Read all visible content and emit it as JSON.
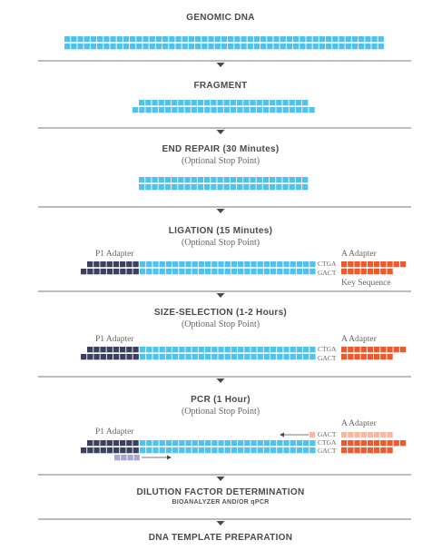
{
  "colors": {
    "dna": "#4fc3ef",
    "p1_adapter": "#3b4060",
    "a_adapter": "#ee5a2b",
    "a_adapter_light": "#f5b9a4",
    "primer": "#a7a7d4",
    "divider": "#4a4a4a",
    "arrow": "#4a4a4a",
    "text": "#4a4a4a"
  },
  "steps": [
    {
      "title": "GENOMIC DNA",
      "subtitle": ""
    },
    {
      "title": "FRAGMENT",
      "subtitle": ""
    },
    {
      "title": "END REPAIR (30 Minutes)",
      "subtitle": "(Optional Stop Point)"
    },
    {
      "title": "LIGATION (15 Minutes)",
      "subtitle": "(Optional Stop Point)"
    },
    {
      "title": "SIZE-SELECTION (1-2 Hours)",
      "subtitle": "(Optional Stop Point)"
    },
    {
      "title": "PCR (1 Hour)",
      "subtitle": "(Optional Stop Point)"
    },
    {
      "title": "DILUTION FACTOR DETERMINATION",
      "subtitle": "BIOANALYZER AND/OR qPCR"
    },
    {
      "title": "DNA TEMPLATE PREPARATION",
      "subtitle": ""
    }
  ],
  "labels": {
    "p1_adapter": "P1 Adapter",
    "a_adapter": "A Adapter",
    "key_sequence": "Key Sequence",
    "seq_top": "CTGA",
    "seq_bottom": "GACT"
  }
}
